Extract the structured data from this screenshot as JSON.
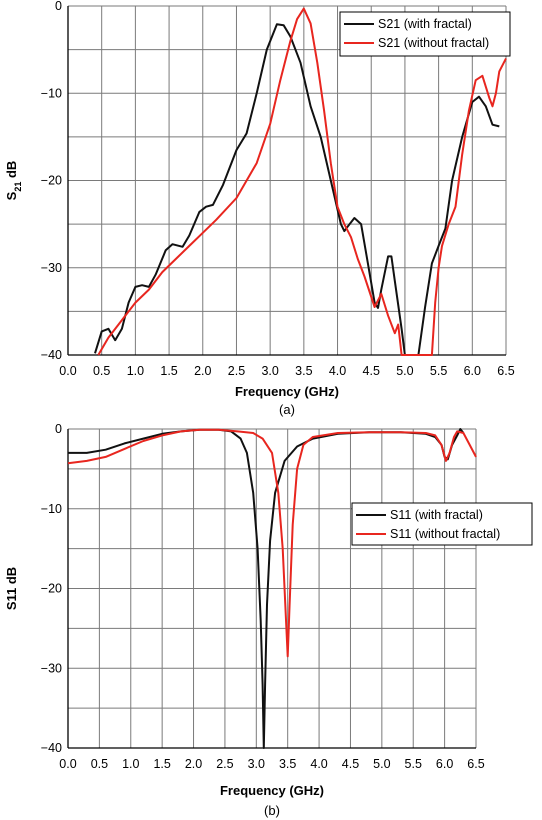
{
  "colors": {
    "with_fractal": "#111111",
    "without_fractal": "#e8261f",
    "grid": "#7a7a7a"
  },
  "chart_data": [
    {
      "type": "line",
      "panel_label": "(a)",
      "xlabel": "Frequency (GHz)",
      "ylabel_main": "S",
      "ylabel_sub": "21",
      "ylabel_tail": " dB",
      "xlim": [
        0,
        6.5
      ],
      "ylim": [
        -40,
        0
      ],
      "xticks": [
        "0.0",
        "0.5",
        "1.0",
        "1.5",
        "2.0",
        "2.5",
        "3.0",
        "3.5",
        "4.0",
        "4.5",
        "5.0",
        "5.5",
        "6.0",
        "6.5"
      ],
      "yticks": [
        "0",
        "−10",
        "−20",
        "−30",
        "−40"
      ],
      "ytick_values": [
        0,
        -10,
        -20,
        -30,
        -40
      ],
      "grid": true,
      "legend_position": "top-right",
      "series": [
        {
          "name": "S21 (with fractal)",
          "color_key": "with_fractal",
          "points": [
            [
              0.4,
              -39.8
            ],
            [
              0.5,
              -37.3
            ],
            [
              0.6,
              -37
            ],
            [
              0.7,
              -38.3
            ],
            [
              0.8,
              -37
            ],
            [
              0.9,
              -34
            ],
            [
              1.0,
              -32.2
            ],
            [
              1.1,
              -32
            ],
            [
              1.2,
              -32.2
            ],
            [
              1.3,
              -30.8
            ],
            [
              1.45,
              -28
            ],
            [
              1.55,
              -27.3
            ],
            [
              1.7,
              -27.6
            ],
            [
              1.8,
              -26.3
            ],
            [
              1.95,
              -23.6
            ],
            [
              2.05,
              -23
            ],
            [
              2.15,
              -22.8
            ],
            [
              2.3,
              -20.5
            ],
            [
              2.5,
              -16.5
            ],
            [
              2.65,
              -14.6
            ],
            [
              2.8,
              -10
            ],
            [
              2.95,
              -5
            ],
            [
              3.1,
              -2.1
            ],
            [
              3.2,
              -2.2
            ],
            [
              3.3,
              -3.5
            ],
            [
              3.45,
              -6.5
            ],
            [
              3.6,
              -11.5
            ],
            [
              3.75,
              -15
            ],
            [
              3.9,
              -20
            ],
            [
              4.05,
              -25
            ],
            [
              4.1,
              -25.8
            ],
            [
              4.15,
              -25.3
            ],
            [
              4.25,
              -24.3
            ],
            [
              4.35,
              -25
            ],
            [
              4.45,
              -29.5
            ],
            [
              4.55,
              -34
            ],
            [
              4.6,
              -34.6
            ],
            [
              4.65,
              -32.5
            ],
            [
              4.75,
              -28.7
            ],
            [
              4.8,
              -28.7
            ],
            [
              4.85,
              -31.5
            ],
            [
              4.95,
              -37
            ],
            [
              5.0,
              -40
            ],
            [
              5.2,
              -40
            ],
            [
              5.3,
              -34.5
            ],
            [
              5.4,
              -29.5
            ],
            [
              5.5,
              -27.5
            ],
            [
              5.6,
              -25.5
            ],
            [
              5.7,
              -20
            ],
            [
              5.85,
              -15
            ],
            [
              6.0,
              -11
            ],
            [
              6.1,
              -10.4
            ],
            [
              6.2,
              -11.5
            ],
            [
              6.3,
              -13.6
            ],
            [
              6.4,
              -13.8
            ]
          ]
        },
        {
          "name": "S21 (without fractal)",
          "color_key": "without_fractal",
          "points": [
            [
              0.45,
              -40
            ],
            [
              0.6,
              -38
            ],
            [
              0.8,
              -36
            ],
            [
              1.0,
              -34
            ],
            [
              1.2,
              -32.5
            ],
            [
              1.4,
              -30.5
            ],
            [
              1.6,
              -29
            ],
            [
              1.8,
              -27.5
            ],
            [
              2.0,
              -26
            ],
            [
              2.2,
              -24.5
            ],
            [
              2.5,
              -22
            ],
            [
              2.8,
              -18
            ],
            [
              3.0,
              -13.5
            ],
            [
              3.15,
              -8.5
            ],
            [
              3.3,
              -4
            ],
            [
              3.4,
              -1.5
            ],
            [
              3.5,
              -0.3
            ],
            [
              3.6,
              -2
            ],
            [
              3.7,
              -6.5
            ],
            [
              3.8,
              -12
            ],
            [
              3.9,
              -18
            ],
            [
              4.0,
              -23
            ],
            [
              4.1,
              -25
            ],
            [
              4.2,
              -26.5
            ],
            [
              4.3,
              -29
            ],
            [
              4.4,
              -31
            ],
            [
              4.55,
              -34.5
            ],
            [
              4.65,
              -33
            ],
            [
              4.75,
              -35.5
            ],
            [
              4.85,
              -37.5
            ],
            [
              4.9,
              -36.5
            ],
            [
              4.95,
              -40
            ],
            [
              5.4,
              -40
            ],
            [
              5.45,
              -34
            ],
            [
              5.5,
              -30
            ],
            [
              5.55,
              -27.5
            ],
            [
              5.65,
              -25
            ],
            [
              5.75,
              -23
            ],
            [
              5.85,
              -17
            ],
            [
              5.95,
              -12
            ],
            [
              6.05,
              -8.5
            ],
            [
              6.15,
              -8
            ],
            [
              6.25,
              -10.5
            ],
            [
              6.3,
              -11.5
            ],
            [
              6.35,
              -10
            ],
            [
              6.4,
              -7.5
            ],
            [
              6.5,
              -6
            ]
          ]
        }
      ]
    },
    {
      "type": "line",
      "panel_label": "(b)",
      "xlabel": "Frequency (GHz)",
      "ylabel_main": "S11 dB",
      "ylabel_sub": "",
      "ylabel_tail": "",
      "xlim": [
        0,
        6.5
      ],
      "ylim": [
        -40,
        0
      ],
      "xticks": [
        "0.0",
        "0.5",
        "1.0",
        "1.5",
        "2.0",
        "2.5",
        "3.0",
        "3.5",
        "4.0",
        "4.5",
        "5.0",
        "5.5",
        "6.0",
        "6.5"
      ],
      "yticks": [
        "0",
        "−10",
        "−20",
        "−30",
        "−40"
      ],
      "ytick_values": [
        0,
        -10,
        -20,
        -30,
        -40
      ],
      "grid": true,
      "legend_position": "center-right",
      "series": [
        {
          "name": "S11 (with fractal)",
          "color_key": "with_fractal",
          "points": [
            [
              0,
              -3
            ],
            [
              0.3,
              -3
            ],
            [
              0.6,
              -2.6
            ],
            [
              0.9,
              -1.8
            ],
            [
              1.2,
              -1.2
            ],
            [
              1.5,
              -0.6
            ],
            [
              1.8,
              -0.3
            ],
            [
              2.1,
              -0.1
            ],
            [
              2.4,
              -0.1
            ],
            [
              2.6,
              -0.3
            ],
            [
              2.75,
              -1.2
            ],
            [
              2.85,
              -3
            ],
            [
              2.95,
              -8
            ],
            [
              3.02,
              -15
            ],
            [
              3.07,
              -24
            ],
            [
              3.1,
              -32
            ],
            [
              3.12,
              -40
            ],
            [
              3.14,
              -32
            ],
            [
              3.17,
              -22
            ],
            [
              3.22,
              -14
            ],
            [
              3.3,
              -8
            ],
            [
              3.45,
              -4
            ],
            [
              3.65,
              -2.2
            ],
            [
              3.9,
              -1.2
            ],
            [
              4.3,
              -0.6
            ],
            [
              4.8,
              -0.4
            ],
            [
              5.3,
              -0.4
            ],
            [
              5.7,
              -0.6
            ],
            [
              5.85,
              -1
            ],
            [
              5.95,
              -2
            ],
            [
              6.0,
              -3.5
            ],
            [
              6.05,
              -3.8
            ],
            [
              6.12,
              -2
            ],
            [
              6.2,
              -0.8
            ],
            [
              6.25,
              0
            ],
            [
              6.3,
              -0.5
            ]
          ]
        },
        {
          "name": "S11 (without fractal)",
          "color_key": "without_fractal",
          "points": [
            [
              0,
              -4.3
            ],
            [
              0.3,
              -4
            ],
            [
              0.6,
              -3.5
            ],
            [
              0.9,
              -2.5
            ],
            [
              1.2,
              -1.5
            ],
            [
              1.5,
              -0.8
            ],
            [
              1.8,
              -0.3
            ],
            [
              2.1,
              -0.1
            ],
            [
              2.4,
              -0.1
            ],
            [
              2.7,
              -0.3
            ],
            [
              2.95,
              -0.5
            ],
            [
              3.1,
              -1.2
            ],
            [
              3.25,
              -3
            ],
            [
              3.35,
              -8
            ],
            [
              3.42,
              -15
            ],
            [
              3.48,
              -25
            ],
            [
              3.5,
              -28.5
            ],
            [
              3.53,
              -22
            ],
            [
              3.58,
              -12
            ],
            [
              3.65,
              -5
            ],
            [
              3.75,
              -2
            ],
            [
              3.9,
              -1
            ],
            [
              4.3,
              -0.5
            ],
            [
              4.8,
              -0.4
            ],
            [
              5.3,
              -0.4
            ],
            [
              5.7,
              -0.5
            ],
            [
              5.85,
              -0.8
            ],
            [
              5.95,
              -2
            ],
            [
              6.02,
              -4
            ],
            [
              6.08,
              -3
            ],
            [
              6.15,
              -1
            ],
            [
              6.2,
              -0.3
            ],
            [
              6.3,
              -0.5
            ],
            [
              6.4,
              -2
            ],
            [
              6.5,
              -3.5
            ]
          ]
        }
      ]
    }
  ]
}
